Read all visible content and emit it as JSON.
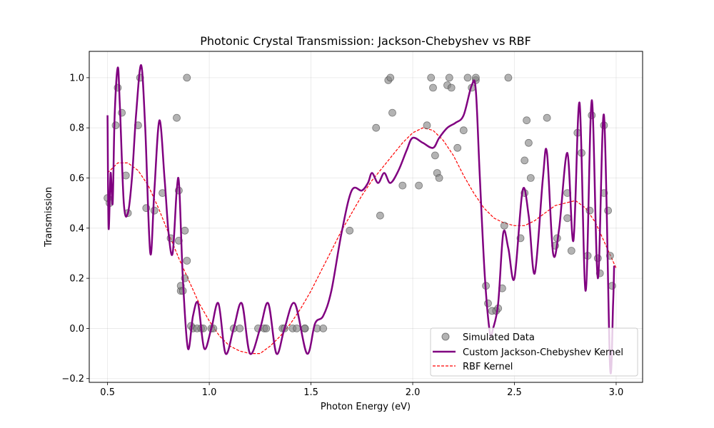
{
  "chart_data": {
    "type": "scatter+line",
    "title": "Photonic Crystal Transmission: Jackson-Chebyshev vs RBF",
    "xlabel": "Photon Energy (eV)",
    "ylabel": "Transmission",
    "xlim": [
      0.41,
      3.13
    ],
    "ylim": [
      -0.215,
      1.105
    ],
    "xticks": [
      0.5,
      1.0,
      1.5,
      2.0,
      2.5,
      3.0
    ],
    "xtick_labels": [
      "0.5",
      "1.0",
      "1.5",
      "2.0",
      "2.5",
      "3.0"
    ],
    "yticks": [
      -0.2,
      0.0,
      0.2,
      0.4,
      0.6,
      0.8,
      1.0
    ],
    "ytick_labels": [
      "−0.2",
      "0.0",
      "0.2",
      "0.4",
      "0.6",
      "0.8",
      "1.0"
    ],
    "grid": true,
    "legend_position": "lower-right",
    "series": [
      {
        "name": "Simulated Data",
        "kind": "scatter",
        "color": "#808080",
        "points": [
          [
            0.5,
            0.52
          ],
          [
            0.51,
            0.5
          ],
          [
            0.54,
            0.81
          ],
          [
            0.55,
            0.96
          ],
          [
            0.57,
            0.86
          ],
          [
            0.59,
            0.61
          ],
          [
            0.6,
            0.46
          ],
          [
            0.65,
            0.81
          ],
          [
            0.66,
            1.0
          ],
          [
            0.69,
            0.48
          ],
          [
            0.73,
            0.47
          ],
          [
            0.77,
            0.54
          ],
          [
            0.81,
            0.36
          ],
          [
            0.84,
            0.84
          ],
          [
            0.85,
            0.55
          ],
          [
            0.85,
            0.35
          ],
          [
            0.86,
            0.15
          ],
          [
            0.86,
            0.17
          ],
          [
            0.87,
            0.15
          ],
          [
            0.88,
            0.2
          ],
          [
            0.88,
            0.39
          ],
          [
            0.89,
            1.0
          ],
          [
            0.89,
            0.27
          ],
          [
            0.91,
            0.01
          ],
          [
            0.92,
            0.0
          ],
          [
            0.94,
            0.0
          ],
          [
            0.96,
            0.0
          ],
          [
            0.97,
            0.0
          ],
          [
            1.01,
            0.0
          ],
          [
            1.02,
            0.0
          ],
          [
            1.12,
            0.0
          ],
          [
            1.15,
            0.0
          ],
          [
            1.24,
            0.0
          ],
          [
            1.27,
            0.0
          ],
          [
            1.28,
            0.0
          ],
          [
            1.36,
            0.0
          ],
          [
            1.37,
            0.0
          ],
          [
            1.41,
            0.0
          ],
          [
            1.43,
            0.0
          ],
          [
            1.47,
            0.0
          ],
          [
            1.47,
            0.0
          ],
          [
            1.53,
            0.0
          ],
          [
            1.56,
            0.0
          ],
          [
            1.69,
            0.39
          ],
          [
            1.82,
            0.8
          ],
          [
            1.84,
            0.45
          ],
          [
            1.88,
            0.99
          ],
          [
            1.89,
            1.0
          ],
          [
            1.9,
            0.86
          ],
          [
            1.95,
            0.57
          ],
          [
            2.03,
            0.57
          ],
          [
            2.07,
            0.81
          ],
          [
            2.09,
            1.0
          ],
          [
            2.1,
            0.96
          ],
          [
            2.11,
            0.69
          ],
          [
            2.12,
            0.62
          ],
          [
            2.13,
            0.6
          ],
          [
            2.17,
            0.97
          ],
          [
            2.18,
            1.0
          ],
          [
            2.19,
            0.96
          ],
          [
            2.22,
            0.72
          ],
          [
            2.25,
            0.79
          ],
          [
            2.27,
            1.0
          ],
          [
            2.29,
            0.96
          ],
          [
            2.31,
            0.99
          ],
          [
            2.31,
            1.0
          ],
          [
            2.36,
            0.17
          ],
          [
            2.37,
            0.1
          ],
          [
            2.39,
            0.07
          ],
          [
            2.41,
            0.07
          ],
          [
            2.42,
            0.08
          ],
          [
            2.44,
            0.16
          ],
          [
            2.45,
            0.41
          ],
          [
            2.47,
            1.0
          ],
          [
            2.53,
            0.36
          ],
          [
            2.55,
            0.54
          ],
          [
            2.55,
            0.67
          ],
          [
            2.56,
            0.83
          ],
          [
            2.57,
            0.74
          ],
          [
            2.58,
            0.6
          ],
          [
            2.66,
            0.84
          ],
          [
            2.7,
            0.33
          ],
          [
            2.71,
            0.36
          ],
          [
            2.76,
            0.54
          ],
          [
            2.76,
            0.44
          ],
          [
            2.78,
            0.31
          ],
          [
            2.81,
            0.78
          ],
          [
            2.83,
            0.7
          ],
          [
            2.86,
            0.29
          ],
          [
            2.87,
            0.47
          ],
          [
            2.88,
            0.85
          ],
          [
            2.91,
            0.28
          ],
          [
            2.92,
            0.22
          ],
          [
            2.94,
            0.81
          ],
          [
            2.94,
            0.54
          ],
          [
            2.96,
            0.47
          ],
          [
            2.97,
            0.29
          ],
          [
            2.98,
            0.17
          ]
        ]
      },
      {
        "name": "Custom Jackson-Chebyshev Kernel",
        "kind": "line",
        "color": "#800080",
        "points": [
          [
            0.5,
            0.85
          ],
          [
            0.505,
            0.4
          ],
          [
            0.515,
            0.62
          ],
          [
            0.525,
            0.5
          ],
          [
            0.535,
            0.85
          ],
          [
            0.55,
            1.04
          ],
          [
            0.56,
            0.9
          ],
          [
            0.58,
            0.5
          ],
          [
            0.6,
            0.46
          ],
          [
            0.62,
            0.6
          ],
          [
            0.64,
            0.85
          ],
          [
            0.665,
            1.05
          ],
          [
            0.685,
            0.8
          ],
          [
            0.71,
            0.3
          ],
          [
            0.73,
            0.55
          ],
          [
            0.755,
            0.83
          ],
          [
            0.78,
            0.6
          ],
          [
            0.8,
            0.38
          ],
          [
            0.82,
            0.3
          ],
          [
            0.84,
            0.55
          ],
          [
            0.852,
            0.57
          ],
          [
            0.87,
            0.2
          ],
          [
            0.895,
            -0.08
          ],
          [
            0.92,
            0.05
          ],
          [
            0.945,
            0.1
          ],
          [
            0.975,
            -0.08
          ],
          [
            1.01,
            0.0
          ],
          [
            1.045,
            0.1
          ],
          [
            1.08,
            -0.1
          ],
          [
            1.12,
            0.0
          ],
          [
            1.16,
            0.1
          ],
          [
            1.2,
            -0.1
          ],
          [
            1.25,
            0.0
          ],
          [
            1.29,
            0.1
          ],
          [
            1.33,
            -0.1
          ],
          [
            1.37,
            0.0
          ],
          [
            1.42,
            0.1
          ],
          [
            1.48,
            -0.1
          ],
          [
            1.52,
            0.02
          ],
          [
            1.56,
            0.05
          ],
          [
            1.6,
            0.15
          ],
          [
            1.65,
            0.38
          ],
          [
            1.7,
            0.55
          ],
          [
            1.75,
            0.55
          ],
          [
            1.78,
            0.58
          ],
          [
            1.8,
            0.62
          ],
          [
            1.83,
            0.58
          ],
          [
            1.86,
            0.62
          ],
          [
            1.89,
            0.58
          ],
          [
            1.93,
            0.63
          ],
          [
            1.97,
            0.71
          ],
          [
            2.0,
            0.76
          ],
          [
            2.05,
            0.74
          ],
          [
            2.1,
            0.72
          ],
          [
            2.13,
            0.76
          ],
          [
            2.17,
            0.8
          ],
          [
            2.21,
            0.82
          ],
          [
            2.25,
            0.85
          ],
          [
            2.29,
            0.97
          ],
          [
            2.31,
            0.95
          ],
          [
            2.33,
            0.6
          ],
          [
            2.355,
            0.2
          ],
          [
            2.38,
            -0.02
          ],
          [
            2.395,
            0.0
          ],
          [
            2.42,
            0.1
          ],
          [
            2.445,
            0.38
          ],
          [
            2.47,
            0.32
          ],
          [
            2.5,
            0.2
          ],
          [
            2.54,
            0.55
          ],
          [
            2.57,
            0.45
          ],
          [
            2.6,
            0.22
          ],
          [
            2.64,
            0.6
          ],
          [
            2.66,
            0.7
          ],
          [
            2.69,
            0.3
          ],
          [
            2.72,
            0.4
          ],
          [
            2.76,
            0.7
          ],
          [
            2.79,
            0.35
          ],
          [
            2.82,
            0.9
          ],
          [
            2.85,
            0.15
          ],
          [
            2.88,
            0.91
          ],
          [
            2.91,
            0.2
          ],
          [
            2.94,
            0.85
          ],
          [
            2.97,
            -0.15
          ],
          [
            2.985,
            0.1
          ],
          [
            2.99,
            0.25
          ]
        ]
      },
      {
        "name": "RBF Kernel",
        "kind": "line",
        "dashed": true,
        "color": "#ff0000",
        "points": [
          [
            0.5,
            0.62
          ],
          [
            0.55,
            0.66
          ],
          [
            0.6,
            0.66
          ],
          [
            0.65,
            0.63
          ],
          [
            0.7,
            0.57
          ],
          [
            0.75,
            0.48
          ],
          [
            0.8,
            0.38
          ],
          [
            0.85,
            0.28
          ],
          [
            0.9,
            0.19
          ],
          [
            0.95,
            0.1
          ],
          [
            1.0,
            0.03
          ],
          [
            1.05,
            -0.03
          ],
          [
            1.1,
            -0.07
          ],
          [
            1.15,
            -0.09
          ],
          [
            1.2,
            -0.1
          ],
          [
            1.25,
            -0.1
          ],
          [
            1.3,
            -0.07
          ],
          [
            1.35,
            -0.03
          ],
          [
            1.4,
            0.02
          ],
          [
            1.45,
            0.08
          ],
          [
            1.5,
            0.15
          ],
          [
            1.55,
            0.23
          ],
          [
            1.6,
            0.31
          ],
          [
            1.65,
            0.39
          ],
          [
            1.7,
            0.46
          ],
          [
            1.75,
            0.53
          ],
          [
            1.8,
            0.59
          ],
          [
            1.85,
            0.64
          ],
          [
            1.9,
            0.69
          ],
          [
            1.95,
            0.74
          ],
          [
            2.0,
            0.78
          ],
          [
            2.05,
            0.8
          ],
          [
            2.1,
            0.79
          ],
          [
            2.15,
            0.75
          ],
          [
            2.2,
            0.69
          ],
          [
            2.25,
            0.61
          ],
          [
            2.3,
            0.54
          ],
          [
            2.35,
            0.48
          ],
          [
            2.4,
            0.44
          ],
          [
            2.45,
            0.42
          ],
          [
            2.5,
            0.41
          ],
          [
            2.55,
            0.41
          ],
          [
            2.6,
            0.43
          ],
          [
            2.65,
            0.46
          ],
          [
            2.7,
            0.49
          ],
          [
            2.75,
            0.5
          ],
          [
            2.8,
            0.51
          ],
          [
            2.85,
            0.48
          ],
          [
            2.9,
            0.42
          ],
          [
            2.95,
            0.33
          ],
          [
            3.0,
            0.24
          ]
        ]
      }
    ]
  }
}
